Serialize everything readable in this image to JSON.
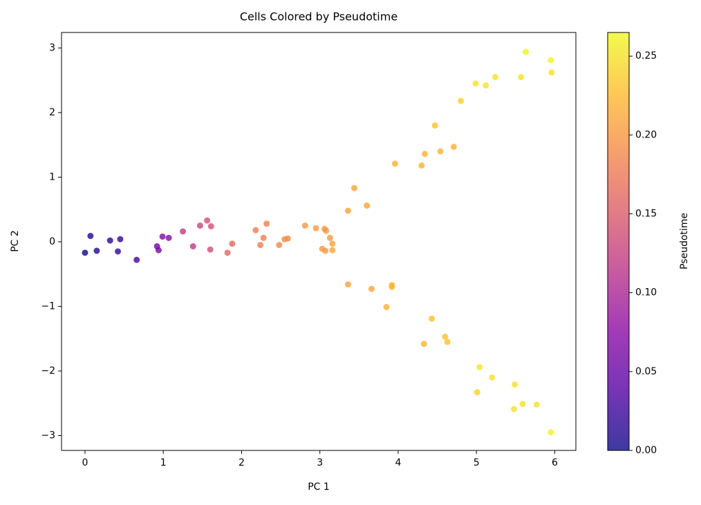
{
  "chart_data": {
    "type": "scatter",
    "title": "Cells Colored by Pseudotime",
    "xlabel": "PC 1",
    "ylabel": "PC 2",
    "colorbar_label": "Pseudotime",
    "colormap": "plasma",
    "xlim": [
      -0.3,
      6.27
    ],
    "ylim": [
      -3.23,
      3.24
    ],
    "clim": [
      0,
      0.265
    ],
    "xticks": [
      0,
      1,
      2,
      3,
      4,
      5,
      6
    ],
    "yticks": [
      {
        "value": -3,
        "label": "−3"
      },
      {
        "value": -2,
        "label": "−2"
      },
      {
        "value": -1,
        "label": "−1"
      },
      0,
      1,
      2,
      3
    ],
    "cticks": [
      {
        "value": 0,
        "label": "0.00"
      },
      {
        "value": 0.05,
        "label": "0.05"
      },
      {
        "value": 0.1,
        "label": "0.10"
      },
      {
        "value": 0.15,
        "label": "0.15"
      },
      {
        "value": 0.2,
        "label": "0.20"
      },
      {
        "value": 0.25,
        "label": "0.25"
      }
    ],
    "x": [
      0.0,
      0.07,
      0.15,
      0.32,
      0.42,
      0.45,
      0.66,
      0.92,
      0.94,
      0.99,
      1.07,
      1.25,
      1.38,
      1.47,
      1.56,
      1.61,
      1.6,
      1.82,
      1.88,
      2.18,
      2.24,
      2.28,
      2.32,
      2.48,
      2.55,
      2.59,
      2.81,
      2.95,
      3.06,
      3.08,
      3.13,
      3.16,
      3.03,
      3.07,
      3.16,
      3.36,
      3.44,
      3.6,
      3.96,
      4.3,
      4.34,
      4.47,
      4.54,
      4.71,
      4.8,
      4.99,
      5.12,
      5.24,
      5.57,
      5.63,
      5.95,
      5.96,
      3.36,
      3.66,
      3.92,
      3.92,
      3.85,
      4.43,
      4.33,
      4.6,
      4.63,
      5.04,
      5.2,
      5.01,
      5.49,
      5.48,
      5.59,
      5.77,
      5.95
    ],
    "y": [
      -0.17,
      0.09,
      -0.14,
      0.02,
      -0.15,
      0.04,
      -0.28,
      -0.07,
      -0.13,
      0.08,
      0.06,
      0.16,
      -0.07,
      0.25,
      0.33,
      0.24,
      -0.12,
      -0.17,
      -0.03,
      0.18,
      -0.05,
      0.06,
      0.28,
      -0.05,
      0.04,
      0.05,
      0.25,
      0.21,
      0.2,
      0.17,
      0.06,
      -0.03,
      -0.11,
      -0.14,
      -0.13,
      0.48,
      0.83,
      0.56,
      1.21,
      1.18,
      1.36,
      1.8,
      1.4,
      1.47,
      2.18,
      2.45,
      2.42,
      2.55,
      2.55,
      2.94,
      2.81,
      2.62,
      -0.66,
      -0.73,
      -0.67,
      -0.7,
      -1.01,
      -1.19,
      -1.58,
      -1.47,
      -1.55,
      -1.94,
      -2.1,
      -2.33,
      -2.21,
      -2.59,
      -2.51,
      -2.52,
      -2.95
    ],
    "c": [
      0.0,
      0.01,
      0.01,
      0.015,
      0.02,
      0.02,
      0.03,
      0.06,
      0.06,
      0.07,
      0.07,
      0.12,
      0.12,
      0.13,
      0.14,
      0.14,
      0.14,
      0.16,
      0.16,
      0.18,
      0.18,
      0.18,
      0.18,
      0.19,
      0.19,
      0.19,
      0.2,
      0.2,
      0.2,
      0.2,
      0.2,
      0.21,
      0.2,
      0.2,
      0.21,
      0.21,
      0.21,
      0.21,
      0.22,
      0.22,
      0.22,
      0.23,
      0.22,
      0.22,
      0.24,
      0.25,
      0.25,
      0.25,
      0.25,
      0.26,
      0.26,
      0.25,
      0.21,
      0.21,
      0.22,
      0.22,
      0.22,
      0.23,
      0.22,
      0.23,
      0.23,
      0.25,
      0.25,
      0.24,
      0.25,
      0.25,
      0.25,
      0.25,
      0.26
    ]
  }
}
